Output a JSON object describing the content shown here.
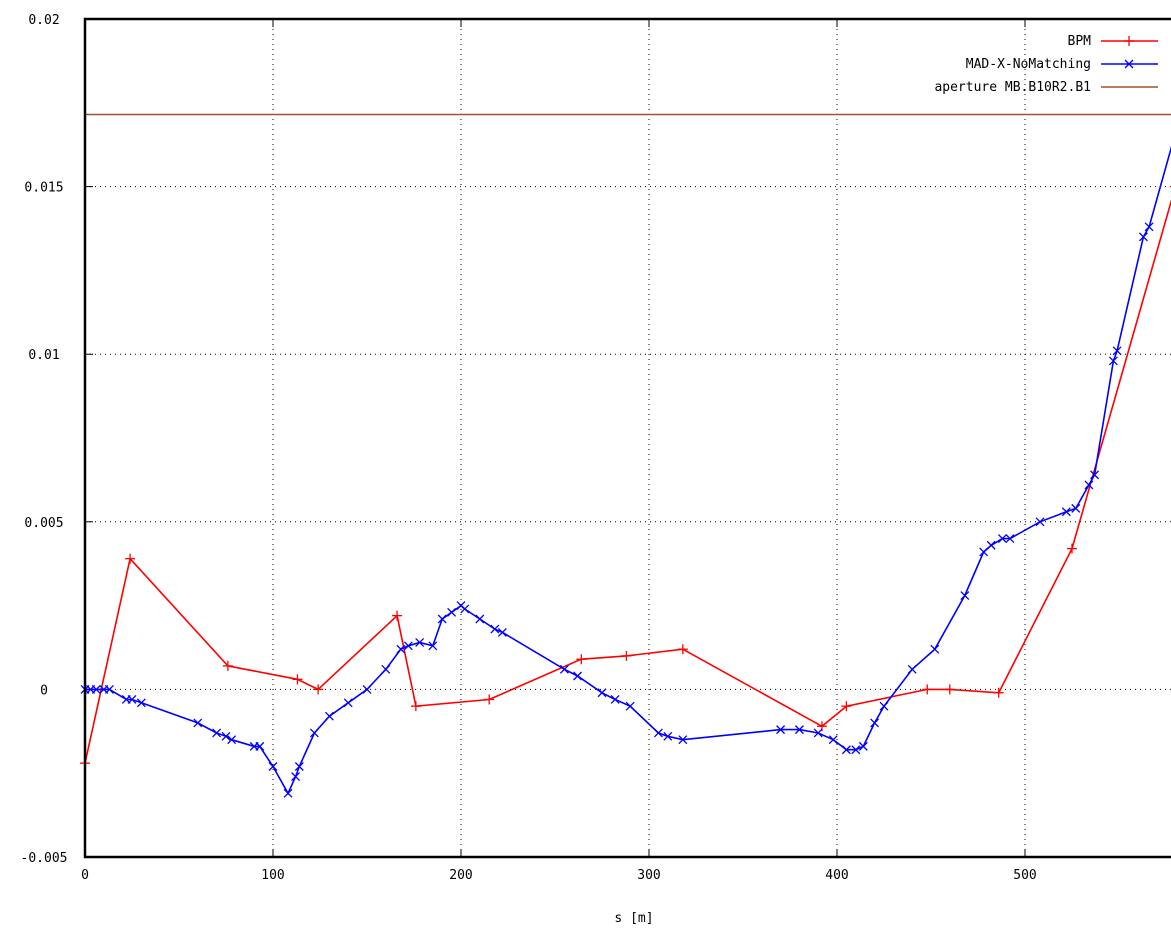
{
  "chart_data": {
    "type": "line",
    "title": "",
    "xlabel": "s [m]",
    "ylabel": "",
    "xlim": [
      0,
      580
    ],
    "ylim": [
      -0.005,
      0.02
    ],
    "grid": true,
    "legend_position": "top-right",
    "x_ticks": [
      {
        "value": 0,
        "label": "0"
      },
      {
        "value": 100,
        "label": "100"
      },
      {
        "value": 200,
        "label": "200"
      },
      {
        "value": 300,
        "label": "300"
      },
      {
        "value": 400,
        "label": "400"
      },
      {
        "value": 500,
        "label": "500"
      }
    ],
    "y_ticks": [
      {
        "value": -0.005,
        "label": "-0.005"
      },
      {
        "value": 0,
        "label": "0"
      },
      {
        "value": 0.005,
        "label": "0.005"
      },
      {
        "value": 0.01,
        "label": "0.01"
      },
      {
        "value": 0.015,
        "label": "0.015"
      },
      {
        "value": 0.02,
        "label": "0.02"
      }
    ],
    "series": [
      {
        "name": "BPM",
        "color": "#ff0000",
        "marker": "plus",
        "points": [
          [
            0,
            -0.0022
          ],
          [
            24,
            0.0039
          ],
          [
            76,
            0.0007
          ],
          [
            113,
            0.0003
          ],
          [
            124,
            0.0
          ],
          [
            166,
            0.0022
          ],
          [
            176,
            -0.0005
          ],
          [
            215,
            -0.0003
          ],
          [
            264,
            0.0009
          ],
          [
            288,
            0.001
          ],
          [
            318,
            0.0012
          ],
          [
            392,
            -0.0011
          ],
          [
            405,
            -0.0005
          ],
          [
            448,
            0.0
          ],
          [
            460,
            0.0
          ],
          [
            486,
            -0.0001
          ],
          [
            525,
            0.0042
          ],
          [
            580,
            0.015
          ]
        ]
      },
      {
        "name": "MAD-X-NoMatching",
        "color": "#0000ff",
        "marker": "cross",
        "points": [
          [
            0,
            0.0
          ],
          [
            3,
            0.0
          ],
          [
            6,
            0.0
          ],
          [
            10,
            0.0
          ],
          [
            13,
            0.0
          ],
          [
            22,
            -0.0003
          ],
          [
            25,
            -0.0003
          ],
          [
            30,
            -0.0004
          ],
          [
            60,
            -0.001
          ],
          [
            70,
            -0.0013
          ],
          [
            75,
            -0.0014
          ],
          [
            78,
            -0.0015
          ],
          [
            90,
            -0.0017
          ],
          [
            93,
            -0.0017
          ],
          [
            100,
            -0.0023
          ],
          [
            108,
            -0.0031
          ],
          [
            112,
            -0.0026
          ],
          [
            114,
            -0.0023
          ],
          [
            122,
            -0.0013
          ],
          [
            130,
            -0.0008
          ],
          [
            140,
            -0.0004
          ],
          [
            150,
            0.0
          ],
          [
            160,
            0.0006
          ],
          [
            168,
            0.0012
          ],
          [
            172,
            0.0013
          ],
          [
            178,
            0.0014
          ],
          [
            185,
            0.0013
          ],
          [
            190,
            0.0021
          ],
          [
            195,
            0.0023
          ],
          [
            200,
            0.0025
          ],
          [
            202,
            0.0024
          ],
          [
            210,
            0.0021
          ],
          [
            218,
            0.0018
          ],
          [
            222,
            0.0017
          ],
          [
            255,
            0.0006
          ],
          [
            262,
            0.0004
          ],
          [
            275,
            -0.0001
          ],
          [
            282,
            -0.0003
          ],
          [
            290,
            -0.0005
          ],
          [
            305,
            -0.0013
          ],
          [
            310,
            -0.0014
          ],
          [
            318,
            -0.0015
          ],
          [
            370,
            -0.0012
          ],
          [
            380,
            -0.0012
          ],
          [
            390,
            -0.0013
          ],
          [
            398,
            -0.0015
          ],
          [
            405,
            -0.0018
          ],
          [
            410,
            -0.0018
          ],
          [
            414,
            -0.0017
          ],
          [
            420,
            -0.001
          ],
          [
            425,
            -0.0005
          ],
          [
            440,
            0.0006
          ],
          [
            452,
            0.0012
          ],
          [
            468,
            0.0028
          ],
          [
            478,
            0.0041
          ],
          [
            482,
            0.0043
          ],
          [
            488,
            0.0045
          ],
          [
            492,
            0.0045
          ],
          [
            508,
            0.005
          ],
          [
            522,
            0.0053
          ],
          [
            527,
            0.0054
          ],
          [
            534,
            0.0061
          ],
          [
            537,
            0.0064
          ],
          [
            547,
            0.0098
          ],
          [
            549,
            0.0101
          ],
          [
            563,
            0.0135
          ],
          [
            566,
            0.0138
          ],
          [
            580,
            0.0166
          ]
        ]
      },
      {
        "name": "aperture MB.B10R2.B1",
        "color": "#a0522d",
        "marker": "none",
        "points": [
          [
            0,
            0.01715
          ],
          [
            580,
            0.01715
          ]
        ]
      }
    ]
  }
}
